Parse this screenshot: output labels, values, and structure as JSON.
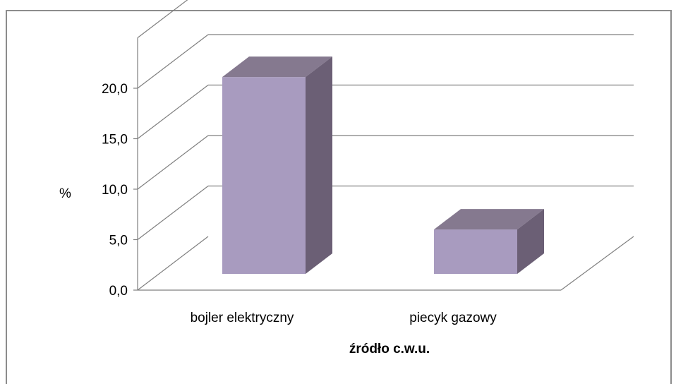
{
  "chart_data": {
    "type": "bar",
    "variant": "3d-column",
    "categories": [
      "bojler elektryczny",
      "piecyk gazowy"
    ],
    "values": [
      19.5,
      4.4
    ],
    "xlabel": "źródło c.w.u.",
    "ylabel": "%",
    "ylim": [
      0,
      20
    ],
    "yticks": [
      "0,0",
      "5,0",
      "10,0",
      "15,0",
      "20,0"
    ],
    "grid": true,
    "legend": "none",
    "colors": {
      "front": "#A89BBF",
      "top": "#85798F",
      "side": "#6B5F75",
      "grid": "#7f7f7f"
    }
  }
}
